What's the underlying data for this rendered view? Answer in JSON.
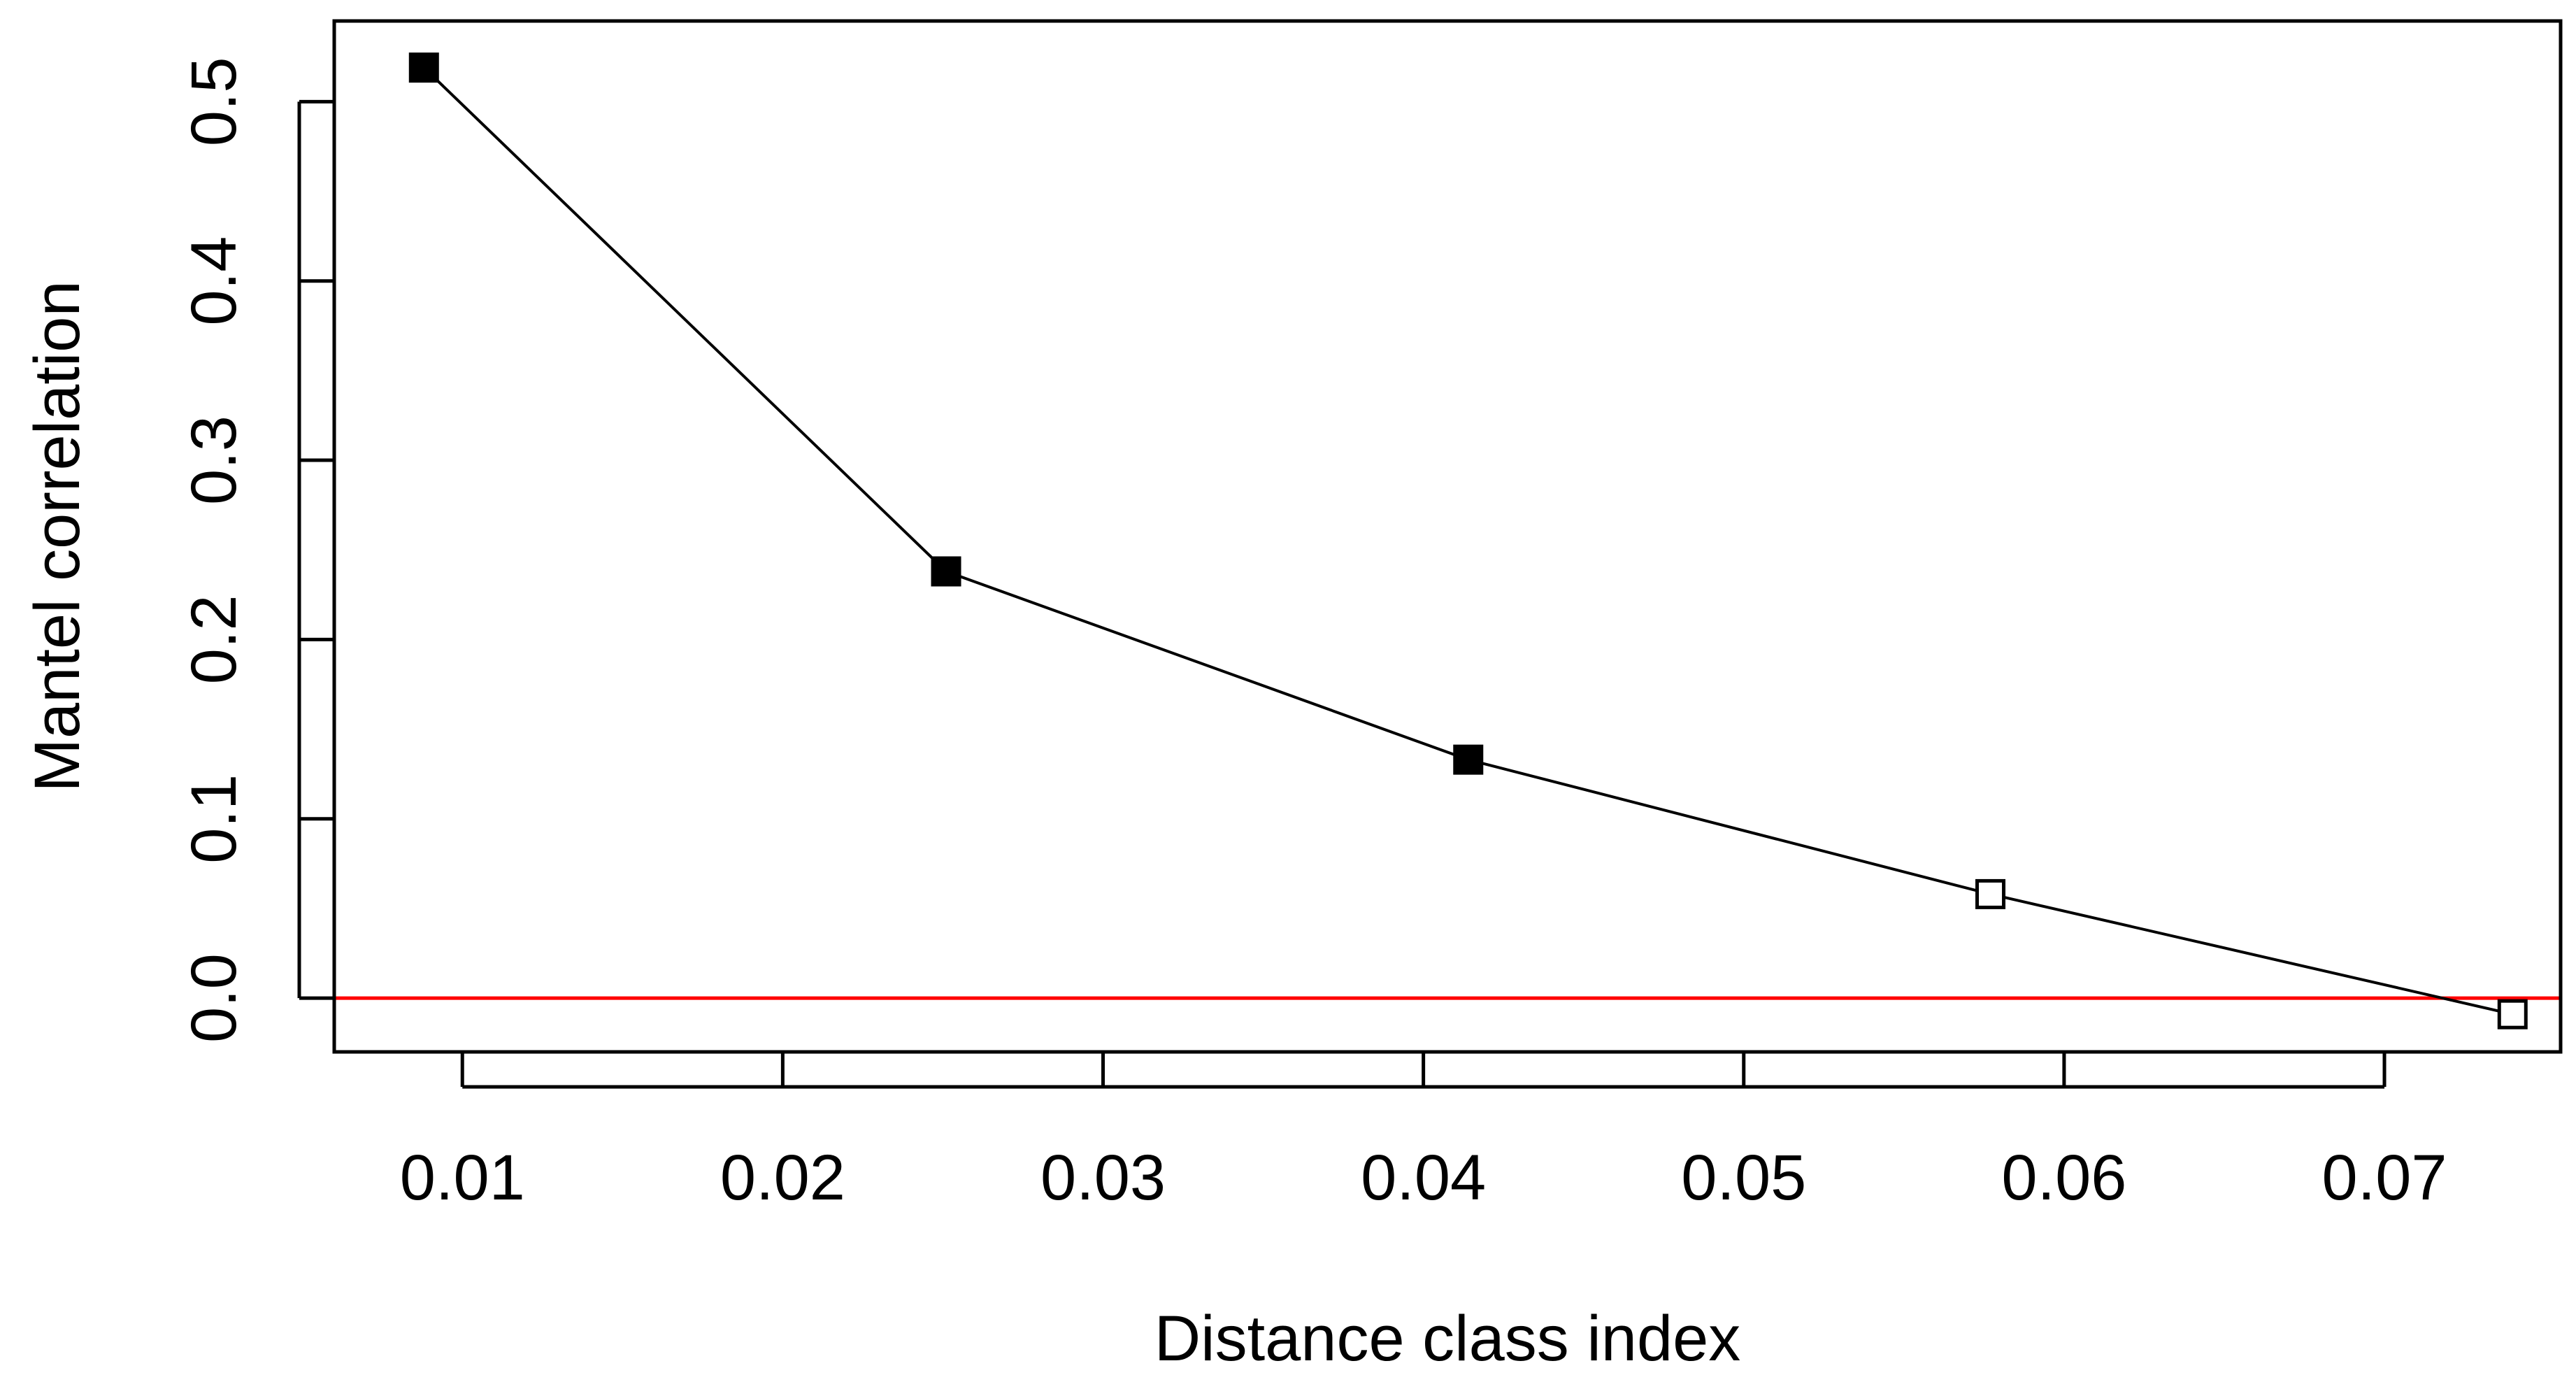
{
  "chart_data": {
    "type": "line",
    "title": "",
    "xlabel": "Distance class index",
    "ylabel": "Mantel correlation",
    "xlim": [
      0.006,
      0.0755
    ],
    "ylim": [
      -0.03,
      0.545
    ],
    "x_ticks": [
      0.01,
      0.02,
      0.03,
      0.04,
      0.05,
      0.06,
      0.07
    ],
    "x_tick_labels": [
      "0.01",
      "0.02",
      "0.03",
      "0.04",
      "0.05",
      "0.06",
      "0.07"
    ],
    "y_ticks": [
      0.0,
      0.1,
      0.2,
      0.3,
      0.4,
      0.5
    ],
    "y_tick_labels": [
      "0.0",
      "0.1",
      "0.2",
      "0.3",
      "0.4",
      "0.5"
    ],
    "grid": false,
    "series": [
      {
        "x": [
          0.0088,
          0.0251,
          0.0414,
          0.0577,
          0.074
        ],
        "y": [
          0.519,
          0.238,
          0.133,
          0.058,
          -0.009
        ],
        "significant": [
          true,
          true,
          true,
          false,
          false
        ],
        "color": "#000000",
        "marker": "square"
      }
    ],
    "reference_line": {
      "y": 0.0,
      "color": "#ff0000"
    }
  }
}
